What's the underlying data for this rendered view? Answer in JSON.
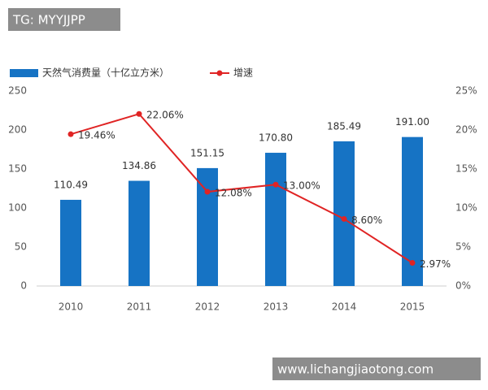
{
  "chart_data": {
    "type": "bar",
    "categories": [
      "2010",
      "2011",
      "2012",
      "2013",
      "2014",
      "2015"
    ],
    "series": [
      {
        "name": "天然气消费量（十亿立方米）",
        "color": "#1673c4",
        "values": [
          110.49,
          134.86,
          151.15,
          170.8,
          185.49,
          191.0
        ],
        "value_labels": [
          "110.49",
          "134.86",
          "151.15",
          "170.80",
          "185.49",
          "191.00"
        ]
      },
      {
        "name": "增速",
        "type": "line",
        "axis": "y2",
        "color": "#e02424",
        "values": [
          19.46,
          22.06,
          12.08,
          13.0,
          8.6,
          2.97
        ],
        "value_labels": [
          "19.46%",
          "22.06%",
          "12.08%",
          "13.00%",
          "8.60%",
          "2.97%"
        ]
      }
    ],
    "ylim": [
      0,
      250
    ],
    "yticks": [
      0,
      50,
      100,
      150,
      200,
      250
    ],
    "y2lim": [
      0,
      25
    ],
    "y2ticks": [
      {
        "value": 0,
        "label": "0%"
      },
      {
        "value": 5,
        "label": "5%"
      },
      {
        "value": 10,
        "label": "10%"
      },
      {
        "value": 15,
        "label": "15%"
      },
      {
        "value": 20,
        "label": "20%"
      },
      {
        "value": 25,
        "label": "25%"
      }
    ],
    "legend": "top-left"
  },
  "watermarks": [
    "TG: MYYJJPP",
    "www.lichangjiaotong.com"
  ]
}
